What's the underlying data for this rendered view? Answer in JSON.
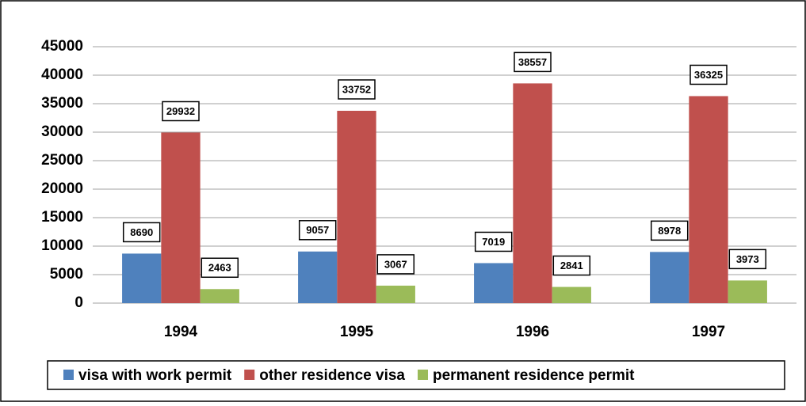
{
  "chart_data": {
    "type": "bar",
    "categories": [
      "1994",
      "1995",
      "1996",
      "1997"
    ],
    "series": [
      {
        "name": "visa with work permit",
        "color": "#4f81bd",
        "values": [
          8690,
          9057,
          7019,
          8978
        ]
      },
      {
        "name": "other residence visa",
        "color": "#c0504d",
        "values": [
          29932,
          33752,
          38557,
          36325
        ]
      },
      {
        "name": "permanent residence permit",
        "color": "#9bbb59",
        "values": [
          2463,
          3067,
          2841,
          3973
        ]
      }
    ],
    "ylim": [
      0,
      45000
    ],
    "yticks": [
      0,
      5000,
      10000,
      15000,
      20000,
      25000,
      30000,
      35000,
      40000,
      45000
    ],
    "grid": true,
    "legend": "bottom"
  }
}
